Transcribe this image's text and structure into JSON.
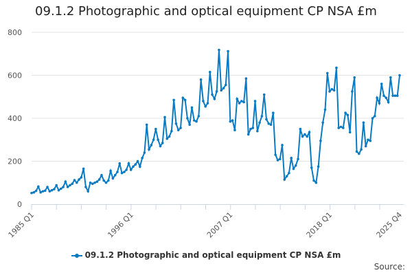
{
  "chart_data": {
    "type": "line",
    "title": "09.1.2 Photographic and optical equipment CP NSA £m",
    "start_year": 1985,
    "frequency": "quarterly",
    "ylim": [
      0,
      800
    ],
    "yticks": [
      0,
      200,
      400,
      600,
      800
    ],
    "xtick_labels": [
      "1985 Q1",
      "1996 Q1",
      "2007 Q1",
      "2018 Q1",
      "2025 Q4"
    ],
    "grid": "horizontal",
    "legend_position": "bottom",
    "series": [
      {
        "name": "09.1.2 Photographic and optical equipment CP NSA £m",
        "color": "#0a7bc2",
        "values": [
          52,
          55,
          62,
          82,
          55,
          60,
          63,
          80,
          60,
          65,
          70,
          88,
          65,
          72,
          80,
          105,
          80,
          88,
          95,
          112,
          100,
          115,
          125,
          165,
          80,
          60,
          100,
          95,
          100,
          105,
          115,
          135,
          110,
          100,
          110,
          155,
          120,
          135,
          150,
          190,
          145,
          150,
          160,
          190,
          160,
          175,
          185,
          200,
          175,
          215,
          240,
          370,
          255,
          275,
          300,
          350,
          300,
          270,
          285,
          405,
          305,
          315,
          340,
          485,
          375,
          345,
          355,
          495,
          485,
          400,
          370,
          450,
          390,
          385,
          410,
          580,
          480,
          455,
          470,
          615,
          510,
          490,
          525,
          718,
          530,
          540,
          555,
          712,
          385,
          390,
          345,
          490,
          470,
          480,
          475,
          585,
          325,
          350,
          355,
          480,
          340,
          380,
          410,
          510,
          395,
          375,
          370,
          425,
          230,
          205,
          210,
          275,
          115,
          130,
          145,
          215,
          165,
          180,
          210,
          350,
          315,
          325,
          315,
          335,
          170,
          110,
          100,
          175,
          295,
          380,
          440,
          610,
          525,
          535,
          530,
          635,
          355,
          360,
          355,
          425,
          415,
          335,
          525,
          590,
          245,
          235,
          255,
          380,
          270,
          300,
          295,
          400,
          410,
          495,
          470,
          560,
          505,
          495,
          475,
          590,
          505,
          505,
          505,
          600
        ]
      }
    ]
  },
  "source_label": "Source:"
}
